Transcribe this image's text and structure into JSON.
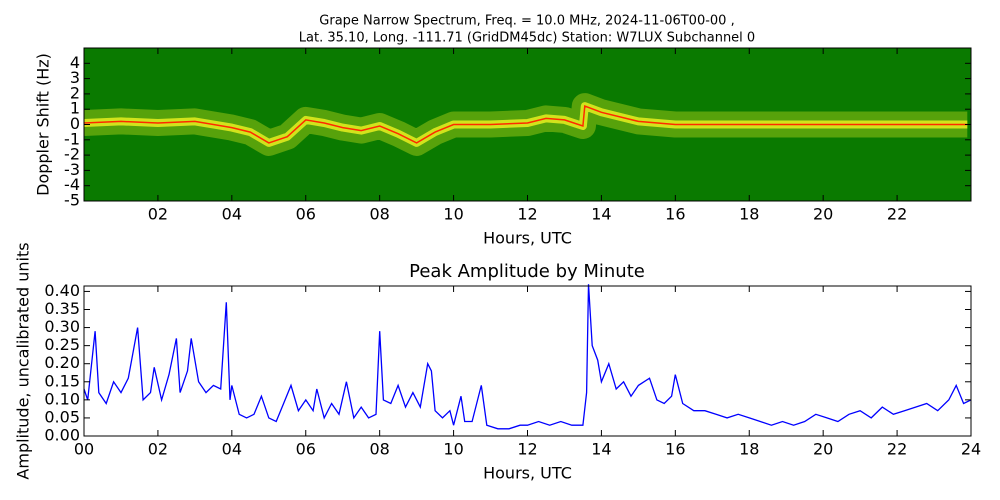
{
  "chart_data": [
    {
      "type": "spectrogram",
      "title": "Grape Narrow Spectrum, Freq. = 10.0 MHz, 2024-11-06T00-00 ,",
      "subtitle": "Lat.  35.10, Long. -111.71 (GridDM45dc) Station: W7LUX Subchannel 0",
      "xlabel": "Hours, UTC",
      "ylabel": "Doppler Shift (Hz)",
      "background": "#0a7a00",
      "band_color": "#e8ee20",
      "color": "#ff2a00",
      "x": [
        0,
        1,
        2,
        3,
        4,
        4.5,
        5,
        5.5,
        6,
        6.5,
        7,
        7.5,
        8,
        8.5,
        9,
        9.5,
        10,
        11,
        12,
        12.5,
        13,
        13.5,
        13.55,
        14,
        15,
        16,
        17,
        18,
        19,
        20,
        21,
        22,
        23,
        23.9
      ],
      "values": [
        0.1,
        0.2,
        0.1,
        0.2,
        -0.2,
        -0.5,
        -1.2,
        -0.8,
        0.3,
        0.1,
        -0.2,
        -0.4,
        -0.1,
        -0.6,
        -1.2,
        -0.5,
        0,
        0,
        0.1,
        0.4,
        0.3,
        -0.1,
        1.2,
        0.8,
        0.2,
        0,
        0,
        0,
        0,
        0,
        0,
        0,
        0,
        0
      ],
      "xlim": [
        0,
        24
      ],
      "ylim": [
        -5,
        5
      ],
      "xticks": [
        {
          "value": 2,
          "label": "02"
        },
        {
          "value": 4,
          "label": "04"
        },
        {
          "value": 6,
          "label": "06"
        },
        {
          "value": 8,
          "label": "08"
        },
        10,
        12,
        14,
        16,
        18,
        20,
        22
      ],
      "yticks": [
        4,
        3,
        2,
        1,
        0,
        -1,
        -2,
        -3,
        -4,
        -5
      ]
    },
    {
      "type": "line",
      "title": "Peak Amplitude by Minute",
      "xlabel": "Hours, UTC",
      "ylabel": "Amplitude, uncalibrated units",
      "color": "#0000ff",
      "x": [
        0,
        0.1,
        0.3,
        0.4,
        0.6,
        0.8,
        1.0,
        1.2,
        1.45,
        1.6,
        1.8,
        1.9,
        2.1,
        2.3,
        2.5,
        2.6,
        2.8,
        2.9,
        3.1,
        3.3,
        3.5,
        3.7,
        3.85,
        3.95,
        4.0,
        4.2,
        4.4,
        4.6,
        4.8,
        5.0,
        5.2,
        5.4,
        5.6,
        5.8,
        6.0,
        6.2,
        6.3,
        6.5,
        6.7,
        6.9,
        7.1,
        7.3,
        7.5,
        7.7,
        7.9,
        8.0,
        8.1,
        8.3,
        8.5,
        8.7,
        8.9,
        9.1,
        9.3,
        9.4,
        9.5,
        9.7,
        9.9,
        10.0,
        10.2,
        10.3,
        10.5,
        10.75,
        10.9,
        11.2,
        11.5,
        11.8,
        12.0,
        12.3,
        12.6,
        12.9,
        13.2,
        13.5,
        13.6,
        13.65,
        13.75,
        13.9,
        14.0,
        14.2,
        14.4,
        14.6,
        14.8,
        15.0,
        15.3,
        15.5,
        15.7,
        15.9,
        16.0,
        16.2,
        16.5,
        16.8,
        17.1,
        17.4,
        17.7,
        18.0,
        18.3,
        18.6,
        18.9,
        19.2,
        19.5,
        19.8,
        20.1,
        20.4,
        20.7,
        21.0,
        21.3,
        21.6,
        21.9,
        22.2,
        22.5,
        22.8,
        23.1,
        23.4,
        23.6,
        23.8,
        24
      ],
      "values": [
        0.13,
        0.1,
        0.29,
        0.12,
        0.09,
        0.15,
        0.12,
        0.16,
        0.3,
        0.1,
        0.12,
        0.19,
        0.1,
        0.17,
        0.27,
        0.12,
        0.18,
        0.27,
        0.15,
        0.12,
        0.14,
        0.13,
        0.37,
        0.1,
        0.14,
        0.06,
        0.05,
        0.06,
        0.11,
        0.05,
        0.04,
        0.09,
        0.14,
        0.07,
        0.1,
        0.07,
        0.13,
        0.05,
        0.09,
        0.06,
        0.15,
        0.05,
        0.08,
        0.05,
        0.06,
        0.29,
        0.1,
        0.09,
        0.14,
        0.08,
        0.12,
        0.08,
        0.2,
        0.18,
        0.07,
        0.05,
        0.07,
        0.03,
        0.11,
        0.04,
        0.04,
        0.14,
        0.03,
        0.02,
        0.02,
        0.03,
        0.03,
        0.04,
        0.03,
        0.04,
        0.03,
        0.03,
        0.12,
        0.42,
        0.25,
        0.21,
        0.15,
        0.2,
        0.13,
        0.15,
        0.11,
        0.14,
        0.16,
        0.1,
        0.09,
        0.11,
        0.17,
        0.09,
        0.07,
        0.07,
        0.06,
        0.05,
        0.06,
        0.05,
        0.04,
        0.03,
        0.04,
        0.03,
        0.04,
        0.06,
        0.05,
        0.04,
        0.06,
        0.07,
        0.05,
        0.08,
        0.06,
        0.07,
        0.08,
        0.09,
        0.07,
        0.1,
        0.14,
        0.09,
        0.1
      ],
      "xlim": [
        0,
        24
      ],
      "ylim": [
        0,
        0.415
      ],
      "xticks": [
        {
          "value": 0,
          "label": "00"
        },
        {
          "value": 2,
          "label": "02"
        },
        {
          "value": 4,
          "label": "04"
        },
        {
          "value": 6,
          "label": "06"
        },
        {
          "value": 8,
          "label": "08"
        },
        10,
        12,
        14,
        16,
        18,
        20,
        22,
        24
      ],
      "yticks": [
        {
          "value": 0,
          "label": "0.00"
        },
        0.05,
        {
          "value": 0.1,
          "label": "0.10"
        },
        0.15,
        {
          "value": 0.2,
          "label": "0.20"
        },
        0.25,
        {
          "value": 0.3,
          "label": "0.30"
        },
        0.35,
        {
          "value": 0.4,
          "label": "0.40"
        }
      ]
    }
  ]
}
